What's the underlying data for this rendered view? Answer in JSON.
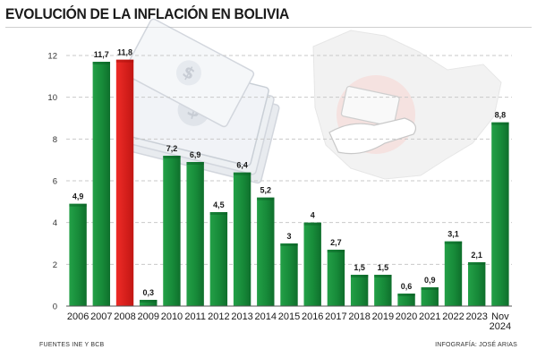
{
  "title": "EVOLUCIÓN DE LA INFLACIÓN EN BOLIVIA",
  "footer": {
    "sources": "FUENTES INE Y BCB",
    "credit": "INFOGRAFÍA: JOSÉ ARIAS"
  },
  "colors": {
    "bar": "#1a8c3c",
    "highlight": "#e0201e",
    "grid": "#c9c9c9",
    "label": "#1a1a1a"
  },
  "icons": [
    "banknote-illustration",
    "bolivia-map-illustration",
    "handshake-money-illustration"
  ],
  "chart_data": {
    "type": "bar",
    "categories": [
      "2006",
      "2007",
      "2008",
      "2009",
      "2010",
      "2011",
      "2012",
      "2013",
      "2014",
      "2015",
      "2016",
      "2017",
      "2018",
      "2019",
      "2020",
      "2021",
      "2022",
      "2023",
      "Nov 2024"
    ],
    "values": [
      4.9,
      11.7,
      11.8,
      0.3,
      7.2,
      6.9,
      4.5,
      6.4,
      5.2,
      3,
      4,
      2.7,
      1.5,
      1.5,
      0.6,
      0.9,
      3.1,
      2.1,
      8.8
    ],
    "value_labels": [
      "4,9",
      "11,7",
      "11,8",
      "0,3",
      "7,2",
      "6,9",
      "4,5",
      "6,4",
      "5,2",
      "3",
      "4",
      "2,7",
      "1,5",
      "1,5",
      "0,6",
      "0,9",
      "3,1",
      "2,1",
      "8,8"
    ],
    "highlight_category": "2008",
    "y_ticks": [
      0,
      2,
      4,
      6,
      8,
      10,
      12
    ],
    "ylim": [
      0,
      12
    ],
    "grid": "horizontal",
    "legend": "none"
  }
}
